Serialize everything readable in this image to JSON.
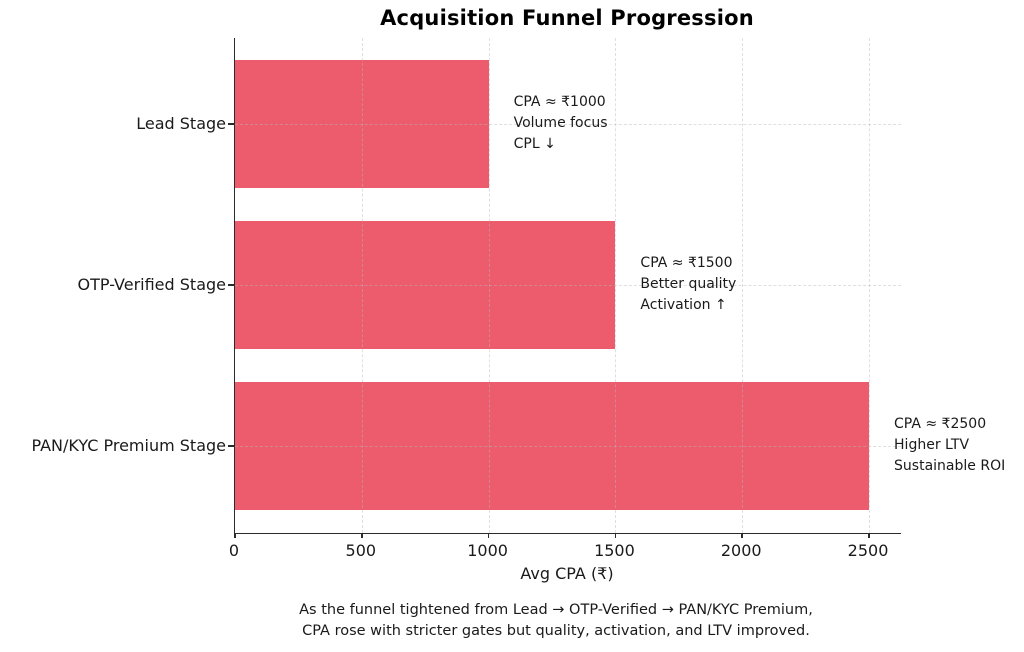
{
  "chart_data": {
    "type": "bar",
    "orientation": "horizontal",
    "title": "Acquisition Funnel Progression",
    "categories": [
      "Lead Stage",
      "OTP-Verified Stage",
      "PAN/KYC Premium Stage"
    ],
    "values": [
      1000,
      1500,
      2500
    ],
    "xlabel": "Avg CPA (₹)",
    "xlim": [
      0,
      2626
    ],
    "xticks": [
      0,
      500,
      1000,
      1500,
      2000,
      2500
    ],
    "bar_color": "#EC5C6D",
    "grid": "dashed",
    "legend": "none",
    "annotations": [
      {
        "lines": [
          "CPA ≈ ₹1000",
          "Volume focus",
          "CPL ↓"
        ]
      },
      {
        "lines": [
          "CPA ≈ ₹1500",
          "Better quality",
          "Activation ↑"
        ]
      },
      {
        "lines": [
          "CPA ≈ ₹2500",
          "Higher LTV",
          "Sustainable ROI"
        ]
      }
    ],
    "footer": [
      "As the funnel tightened from Lead → OTP-Verified → PAN/KYC Premium,",
      "CPA rose with stricter gates but quality, activation, and LTV improved."
    ]
  }
}
